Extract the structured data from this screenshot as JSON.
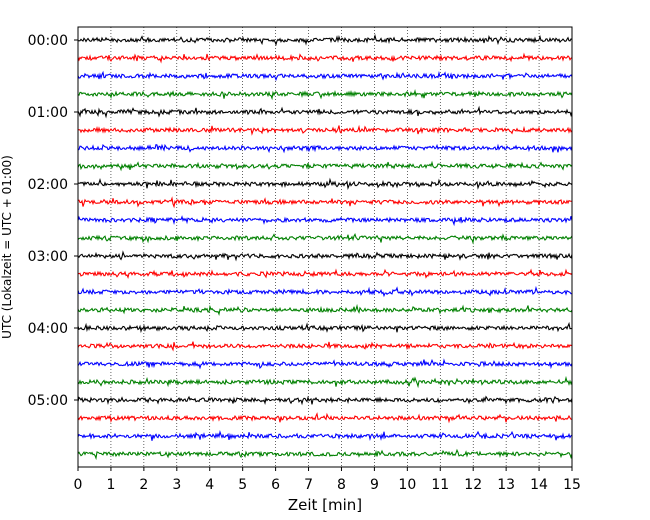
{
  "chart_data": {
    "type": "line",
    "title": "",
    "xlabel": "Zeit  [min]",
    "ylabel": "UTC (Lokalzeit = UTC + 01:00)",
    "xlim": [
      0,
      15
    ],
    "x_ticks": [
      "0",
      "1",
      "2",
      "3",
      "4",
      "5",
      "6",
      "7",
      "8",
      "9",
      "10",
      "11",
      "12",
      "13",
      "14",
      "15"
    ],
    "y_ticks": [
      "00:00",
      "01:00",
      "02:00",
      "03:00",
      "04:00",
      "05:00"
    ],
    "grid": "vertical dotted",
    "trace_interval_min": 15,
    "trace_count": 24,
    "trace_colors": [
      "#000000",
      "#ff0000",
      "#0000ff",
      "#008000"
    ]
  }
}
